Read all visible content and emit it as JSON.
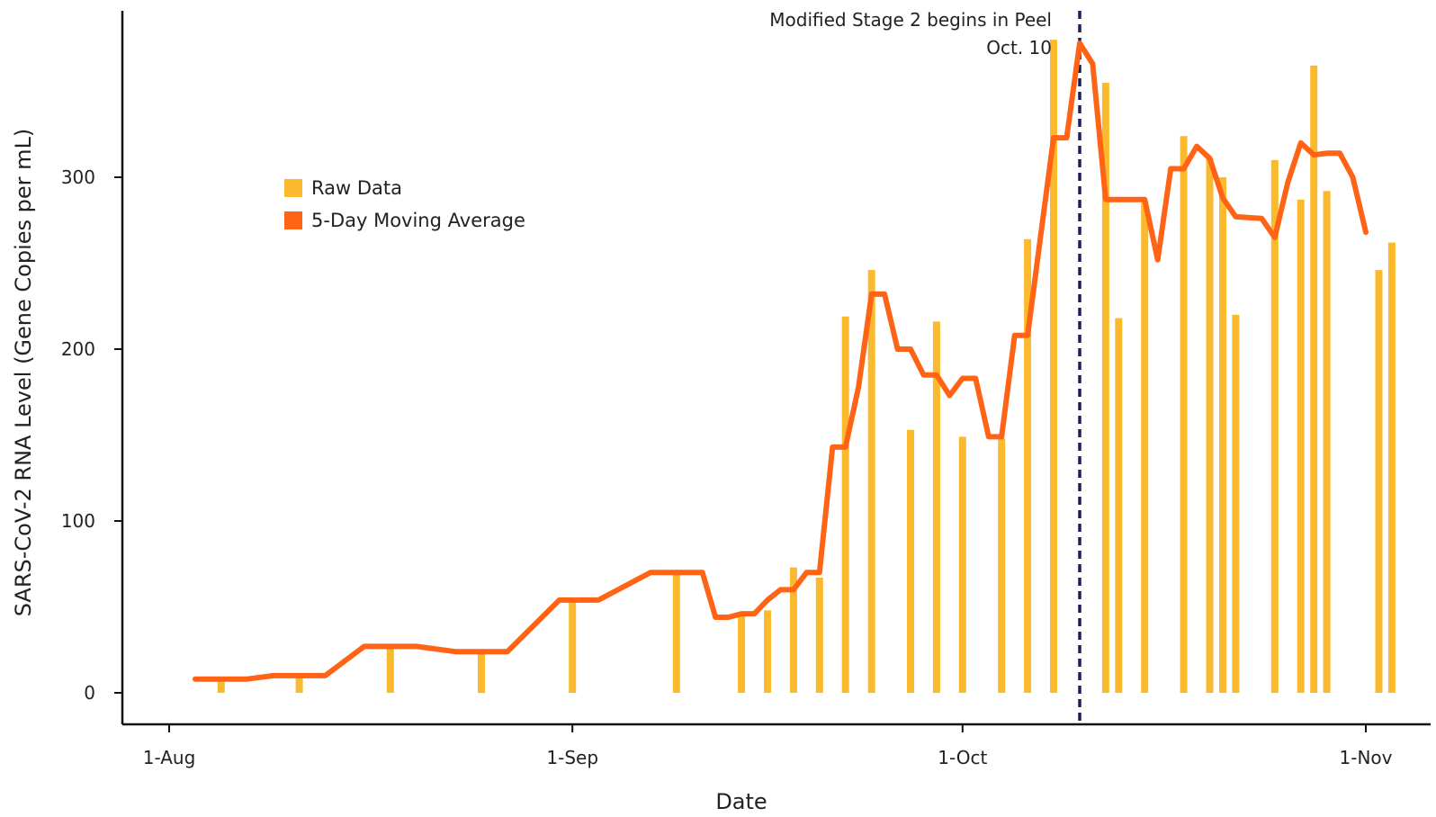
{
  "chart_data": {
    "type": "bar",
    "title": "",
    "xlabel": "Date",
    "ylabel": "SARS-CoV-2 RNA Level (Gene Copies per mL)",
    "ylim": [
      -18,
      400
    ],
    "xlim": [
      "2020-07-30",
      "2020-11-04"
    ],
    "y_ticks": [
      0,
      100,
      200,
      300
    ],
    "x_ticks": [
      {
        "date": "2020-08-01",
        "label": "1-Aug"
      },
      {
        "date": "2020-09-01",
        "label": "1-Sep"
      },
      {
        "date": "2020-10-01",
        "label": "1-Oct"
      },
      {
        "date": "2020-11-01",
        "label": "1-Nov"
      }
    ],
    "grid": false,
    "legend": {
      "placement": "upper-left",
      "entries": [
        "Raw Data",
        "5-Day Moving Average"
      ]
    },
    "colors": {
      "raw": "#FBB92E",
      "avg": "#FF6416",
      "annotation": "#1A1F5C"
    },
    "series": [
      {
        "name": "Raw Data",
        "type": "bar",
        "points": [
          [
            "2020-08-05",
            8
          ],
          [
            "2020-08-11",
            10
          ],
          [
            "2020-08-18",
            27
          ],
          [
            "2020-08-25",
            25
          ],
          [
            "2020-09-01",
            54
          ],
          [
            "2020-09-09",
            70
          ],
          [
            "2020-09-14",
            45
          ],
          [
            "2020-09-16",
            48
          ],
          [
            "2020-09-18",
            73
          ],
          [
            "2020-09-20",
            67
          ],
          [
            "2020-09-22",
            219
          ],
          [
            "2020-09-24",
            246
          ],
          [
            "2020-09-27",
            153
          ],
          [
            "2020-09-29",
            216
          ],
          [
            "2020-10-01",
            149
          ],
          [
            "2020-10-04",
            148
          ],
          [
            "2020-10-06",
            264
          ],
          [
            "2020-10-08",
            380
          ],
          [
            "2020-10-12",
            355
          ],
          [
            "2020-10-13",
            218
          ],
          [
            "2020-10-15",
            286
          ],
          [
            "2020-10-18",
            324
          ],
          [
            "2020-10-20",
            311
          ],
          [
            "2020-10-21",
            300
          ],
          [
            "2020-10-22",
            220
          ],
          [
            "2020-10-25",
            310
          ],
          [
            "2020-10-27",
            287
          ],
          [
            "2020-10-28",
            365
          ],
          [
            "2020-10-29",
            292
          ],
          [
            "2020-11-02",
            246
          ],
          [
            "2020-11-03",
            262
          ]
        ]
      },
      {
        "name": "5-Day Moving Average",
        "type": "line",
        "points": [
          [
            "2020-08-03",
            8
          ],
          [
            "2020-08-07",
            8
          ],
          [
            "2020-08-09",
            10
          ],
          [
            "2020-08-13",
            10
          ],
          [
            "2020-08-16",
            27
          ],
          [
            "2020-08-20",
            27
          ],
          [
            "2020-08-23",
            24
          ],
          [
            "2020-08-27",
            24
          ],
          [
            "2020-08-31",
            54
          ],
          [
            "2020-09-03",
            54
          ],
          [
            "2020-09-07",
            70
          ],
          [
            "2020-09-11",
            70
          ],
          [
            "2020-09-12",
            44
          ],
          [
            "2020-09-13",
            44
          ],
          [
            "2020-09-14",
            46
          ],
          [
            "2020-09-15",
            46
          ],
          [
            "2020-09-16",
            54
          ],
          [
            "2020-09-17",
            60
          ],
          [
            "2020-09-18",
            60
          ],
          [
            "2020-09-19",
            70
          ],
          [
            "2020-09-20",
            70
          ],
          [
            "2020-09-21",
            143
          ],
          [
            "2020-09-22",
            143
          ],
          [
            "2020-09-23",
            178
          ],
          [
            "2020-09-24",
            232
          ],
          [
            "2020-09-25",
            232
          ],
          [
            "2020-09-26",
            200
          ],
          [
            "2020-09-27",
            200
          ],
          [
            "2020-09-28",
            185
          ],
          [
            "2020-09-29",
            185
          ],
          [
            "2020-09-30",
            173
          ],
          [
            "2020-10-01",
            183
          ],
          [
            "2020-10-02",
            183
          ],
          [
            "2020-10-03",
            149
          ],
          [
            "2020-10-04",
            149
          ],
          [
            "2020-10-05",
            208
          ],
          [
            "2020-10-06",
            208
          ],
          [
            "2020-10-07",
            266
          ],
          [
            "2020-10-08",
            323
          ],
          [
            "2020-10-09",
            323
          ],
          [
            "2020-10-10",
            378
          ],
          [
            "2020-10-11",
            366
          ],
          [
            "2020-10-12",
            287
          ],
          [
            "2020-10-15",
            287
          ],
          [
            "2020-10-16",
            252
          ],
          [
            "2020-10-17",
            305
          ],
          [
            "2020-10-18",
            305
          ],
          [
            "2020-10-19",
            318
          ],
          [
            "2020-10-20",
            311
          ],
          [
            "2020-10-21",
            288
          ],
          [
            "2020-10-22",
            277
          ],
          [
            "2020-10-24",
            276
          ],
          [
            "2020-10-25",
            265
          ],
          [
            "2020-10-26",
            297
          ],
          [
            "2020-10-27",
            320
          ],
          [
            "2020-10-28",
            313
          ],
          [
            "2020-10-29",
            314
          ],
          [
            "2020-10-30",
            314
          ],
          [
            "2020-10-31",
            300
          ],
          [
            "2020-11-01",
            268
          ]
        ]
      }
    ],
    "annotations": [
      {
        "type": "vline",
        "date": "2020-10-10",
        "style": "dashed",
        "text": [
          "Modified Stage 2 begins in Peel",
          "Oct. 10"
        ]
      }
    ]
  }
}
